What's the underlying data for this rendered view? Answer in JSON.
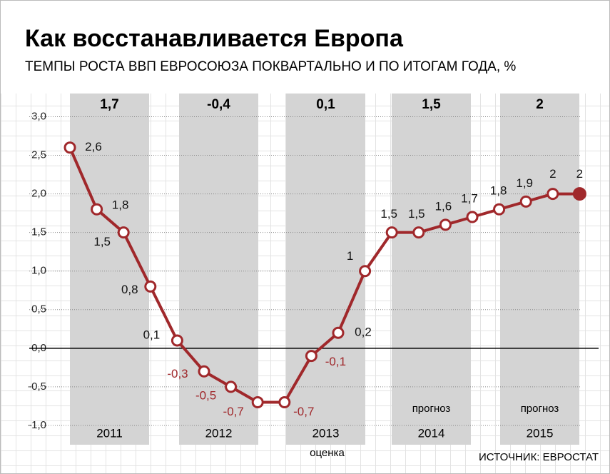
{
  "chart_data": {
    "type": "line",
    "title": "Как восстанавливается Европа",
    "subtitle": "ТЕМПЫ РОСТА ВВП ЕВРОСОЮЗА ПОКВАРТАЛЬНО И ПО ИТОГАМ ГОДА, %",
    "source": "ИСТОЧНИК: ЕВРОСТАТ",
    "years": [
      {
        "name": "2011",
        "value": 1.7,
        "label": "1,7"
      },
      {
        "name": "2012",
        "value": -0.4,
        "label": "-0,4"
      },
      {
        "name": "2013",
        "value": 0.1,
        "label": "0,1",
        "note": "оценка"
      },
      {
        "name": "2014",
        "value": 1.5,
        "label": "1,5",
        "note": "прогноз"
      },
      {
        "name": "2015",
        "value": 2,
        "label": "2",
        "note": "прогноз"
      }
    ],
    "series": [
      {
        "color": "#a0282b",
        "values": [
          2.6,
          1.8,
          1.5,
          0.8,
          0.1,
          -0.3,
          -0.5,
          -0.7,
          -0.7,
          -0.1,
          0.2,
          1,
          1.5,
          1.5,
          1.6,
          1.7,
          1.8,
          1.9,
          2,
          2
        ],
        "value_labels": [
          "2,6",
          "1,8",
          "1,5",
          "0,8",
          "0,1",
          "-0,3",
          "-0,5",
          "-0,7",
          "-0,7",
          "-0,1",
          "0,2",
          "1",
          "1,5",
          "1,5",
          "1,6",
          "1,7",
          "1,8",
          "1,9",
          "2",
          "2"
        ]
      }
    ],
    "ylim": [
      -1.25,
      3.3
    ],
    "yticks": [
      {
        "value": 3,
        "label": "3,0"
      },
      {
        "value": 2.5,
        "label": "2,5"
      },
      {
        "value": 2,
        "label": "2,0"
      },
      {
        "value": 1.5,
        "label": "1,5"
      },
      {
        "value": 1,
        "label": "1,0"
      },
      {
        "value": 0.5,
        "label": "0,5"
      },
      {
        "value": 0,
        "label": "0,0"
      },
      {
        "value": -0.5,
        "label": "-0,5"
      },
      {
        "value": -1,
        "label": "-1,0"
      }
    ],
    "grid": true
  }
}
